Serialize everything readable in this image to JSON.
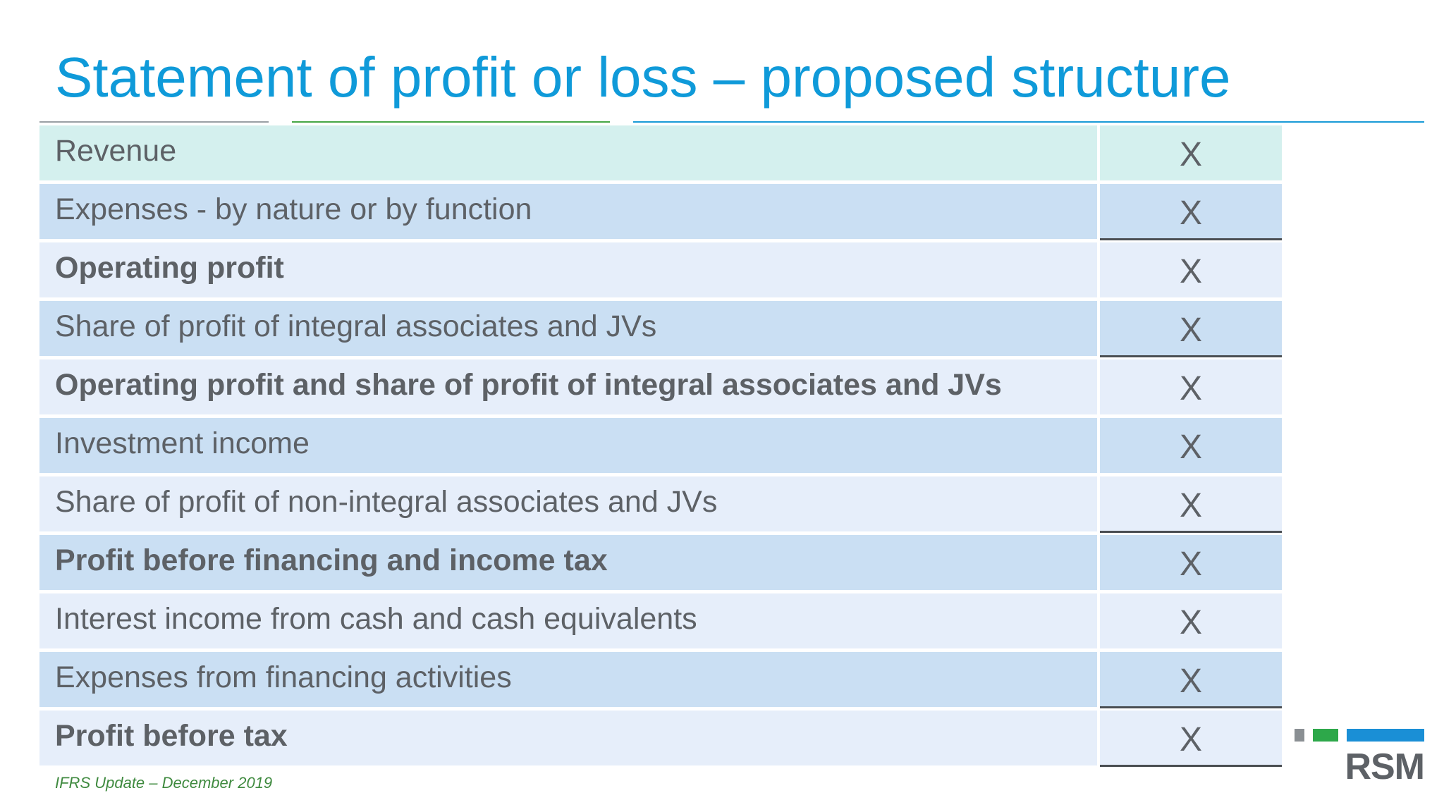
{
  "slide": {
    "title": "Statement of profit or loss – proposed structure",
    "footer": "IFRS Update – December 2019",
    "logo_text": "RSM"
  },
  "colors": {
    "title": "#0f9ad9",
    "rule_gray": "#9aa0a4",
    "rule_green": "#46a745",
    "rule_blue": "#1a9bd7",
    "row_teal": "#d4f0ee",
    "row_blue": "#cadff3",
    "row_light": "#e6eefa",
    "text": "#5d6166",
    "footer": "#3f8a3f",
    "logo_gray": "#8a8f93",
    "logo_green": "#2da84a",
    "logo_blue": "#1a8fd6"
  },
  "rows": [
    {
      "label": "Revenue",
      "value": "X",
      "bold": false,
      "shade": "teal",
      "underline": false
    },
    {
      "label": "Expenses - by nature or by function",
      "value": "X",
      "bold": false,
      "shade": "blue",
      "underline": true
    },
    {
      "label": "Operating profit",
      "value": "X",
      "bold": true,
      "shade": "light",
      "underline": false
    },
    {
      "label": "Share of profit of integral associates and JVs",
      "value": "X",
      "bold": false,
      "shade": "blue",
      "underline": true
    },
    {
      "label": "Operating profit and share of profit of integral associates and JVs",
      "value": "X",
      "bold": true,
      "shade": "light",
      "underline": false
    },
    {
      "label": "Investment income",
      "value": "X",
      "bold": false,
      "shade": "blue",
      "underline": false
    },
    {
      "label": "Share of profit of non-integral associates and JVs",
      "value": "X",
      "bold": false,
      "shade": "light",
      "underline": true
    },
    {
      "label": "Profit before financing and income tax",
      "value": "X",
      "bold": true,
      "shade": "blue",
      "underline": false
    },
    {
      "label": "Interest income from cash and cash equivalents",
      "value": "X",
      "bold": false,
      "shade": "light",
      "underline": false
    },
    {
      "label": "Expenses from financing activities",
      "value": "X",
      "bold": false,
      "shade": "blue",
      "underline": true
    },
    {
      "label": "Profit before tax",
      "value": "X",
      "bold": true,
      "shade": "light",
      "underline": true
    }
  ]
}
